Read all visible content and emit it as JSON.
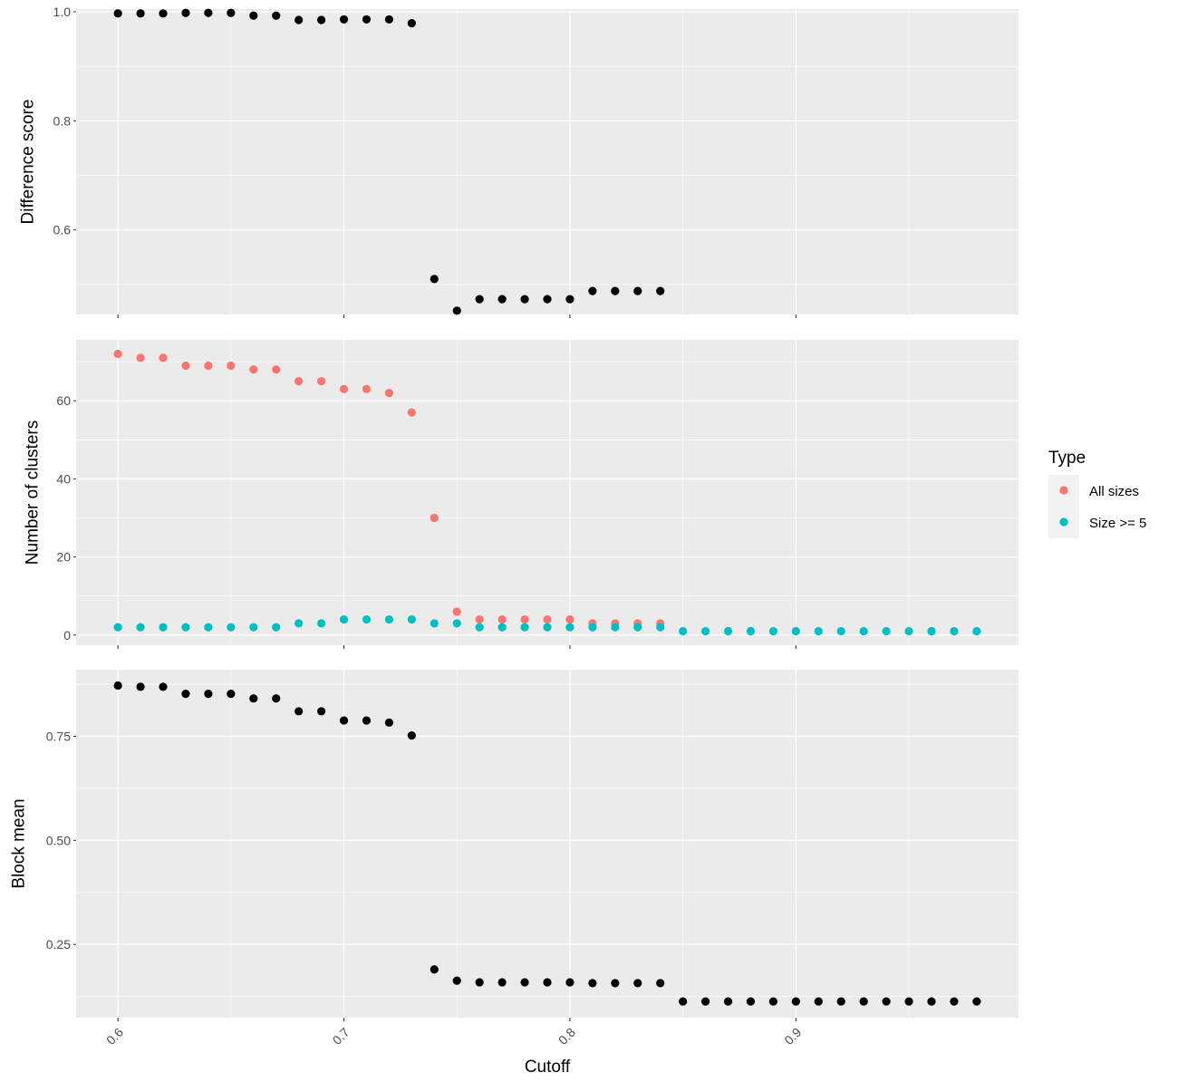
{
  "chart_data": [
    {
      "type": "scatter",
      "ylabel": "Difference score",
      "ylim": [
        0.445,
        1.005
      ],
      "y_ticks": [
        0.6,
        0.8,
        1.0
      ],
      "y_tick_labels": [
        "0.6",
        "0.8",
        "1.0"
      ],
      "xlim": [
        0.5815,
        0.9985
      ],
      "x_ticks": [
        0.6,
        0.7,
        0.8,
        0.9
      ],
      "grid": true,
      "series": [
        {
          "color": "#000000",
          "x": [
            0.6,
            0.61,
            0.62,
            0.63,
            0.64,
            0.65,
            0.66,
            0.67,
            0.68,
            0.69,
            0.7,
            0.71,
            0.72,
            0.73,
            0.74,
            0.75,
            0.76,
            0.77,
            0.78,
            0.79,
            0.8,
            0.81,
            0.82,
            0.83,
            0.84
          ],
          "y": [
            0.997,
            0.997,
            0.997,
            0.998,
            0.998,
            0.998,
            0.993,
            0.993,
            0.985,
            0.985,
            0.986,
            0.986,
            0.986,
            0.979,
            0.51,
            0.452,
            0.473,
            0.473,
            0.473,
            0.473,
            0.473,
            0.488,
            0.488,
            0.488,
            0.488
          ]
        }
      ]
    },
    {
      "type": "scatter",
      "ylabel": "Number of clusters",
      "ylim": [
        -2.6,
        75.6
      ],
      "y_ticks": [
        0,
        20,
        40,
        60
      ],
      "y_tick_labels": [
        "0",
        "20",
        "40",
        "60"
      ],
      "xlim": [
        0.5815,
        0.9985
      ],
      "x_ticks": [
        0.6,
        0.7,
        0.8,
        0.9
      ],
      "grid": true,
      "legend": {
        "title": "Type",
        "placement": "right",
        "entries": [
          {
            "label": "All sizes",
            "color": "#F8766D"
          },
          {
            "label": "Size >= 5",
            "color": "#00BFC4"
          }
        ]
      },
      "series": [
        {
          "name": "All sizes",
          "color": "#F8766D",
          "x": [
            0.6,
            0.61,
            0.62,
            0.63,
            0.64,
            0.65,
            0.66,
            0.67,
            0.68,
            0.69,
            0.7,
            0.71,
            0.72,
            0.73,
            0.74,
            0.75,
            0.76,
            0.77,
            0.78,
            0.79,
            0.8,
            0.81,
            0.82,
            0.83,
            0.84
          ],
          "y": [
            72,
            71,
            71,
            69,
            69,
            69,
            68,
            68,
            65,
            65,
            63,
            63,
            62,
            57,
            30,
            6,
            4,
            4,
            4,
            4,
            4,
            3,
            3,
            3,
            3
          ]
        },
        {
          "name": "Size >= 5",
          "color": "#00BFC4",
          "x": [
            0.6,
            0.61,
            0.62,
            0.63,
            0.64,
            0.65,
            0.66,
            0.67,
            0.68,
            0.69,
            0.7,
            0.71,
            0.72,
            0.73,
            0.74,
            0.75,
            0.76,
            0.77,
            0.78,
            0.79,
            0.8,
            0.81,
            0.82,
            0.83,
            0.84,
            0.85,
            0.86,
            0.87,
            0.88,
            0.89,
            0.9,
            0.91,
            0.92,
            0.93,
            0.94,
            0.95,
            0.96,
            0.97,
            0.98
          ],
          "y": [
            2,
            2,
            2,
            2,
            2,
            2,
            2,
            2,
            3,
            3,
            4,
            4,
            4,
            4,
            3,
            3,
            2,
            2,
            2,
            2,
            2,
            2,
            2,
            2,
            2,
            1,
            1,
            1,
            1,
            1,
            1,
            1,
            1,
            1,
            1,
            1,
            1,
            1,
            1
          ]
        }
      ]
    },
    {
      "type": "scatter",
      "ylabel": "Block mean",
      "xlabel": "Cutoff",
      "ylim": [
        0.074,
        0.91
      ],
      "y_ticks": [
        0.25,
        0.5,
        0.75
      ],
      "y_tick_labels": [
        "0.25",
        "0.50",
        "0.75"
      ],
      "xlim": [
        0.5815,
        0.9985
      ],
      "x_ticks": [
        0.6,
        0.7,
        0.8,
        0.9
      ],
      "x_tick_labels": [
        "0.6",
        "0.7",
        "0.8",
        "0.9"
      ],
      "grid": true,
      "series": [
        {
          "color": "#000000",
          "x": [
            0.6,
            0.61,
            0.62,
            0.63,
            0.64,
            0.65,
            0.66,
            0.67,
            0.68,
            0.69,
            0.7,
            0.71,
            0.72,
            0.73,
            0.74,
            0.75,
            0.76,
            0.77,
            0.78,
            0.79,
            0.8,
            0.81,
            0.82,
            0.83,
            0.84,
            0.85,
            0.86,
            0.87,
            0.88,
            0.89,
            0.9,
            0.91,
            0.92,
            0.93,
            0.94,
            0.95,
            0.96,
            0.97,
            0.98
          ],
          "y": [
            0.872,
            0.869,
            0.869,
            0.852,
            0.852,
            0.852,
            0.841,
            0.841,
            0.81,
            0.81,
            0.788,
            0.788,
            0.783,
            0.752,
            0.19,
            0.163,
            0.159,
            0.159,
            0.159,
            0.159,
            0.159,
            0.157,
            0.157,
            0.157,
            0.157,
            0.113,
            0.113,
            0.113,
            0.113,
            0.113,
            0.113,
            0.113,
            0.113,
            0.113,
            0.113,
            0.113,
            0.113,
            0.113,
            0.113
          ]
        }
      ]
    }
  ]
}
